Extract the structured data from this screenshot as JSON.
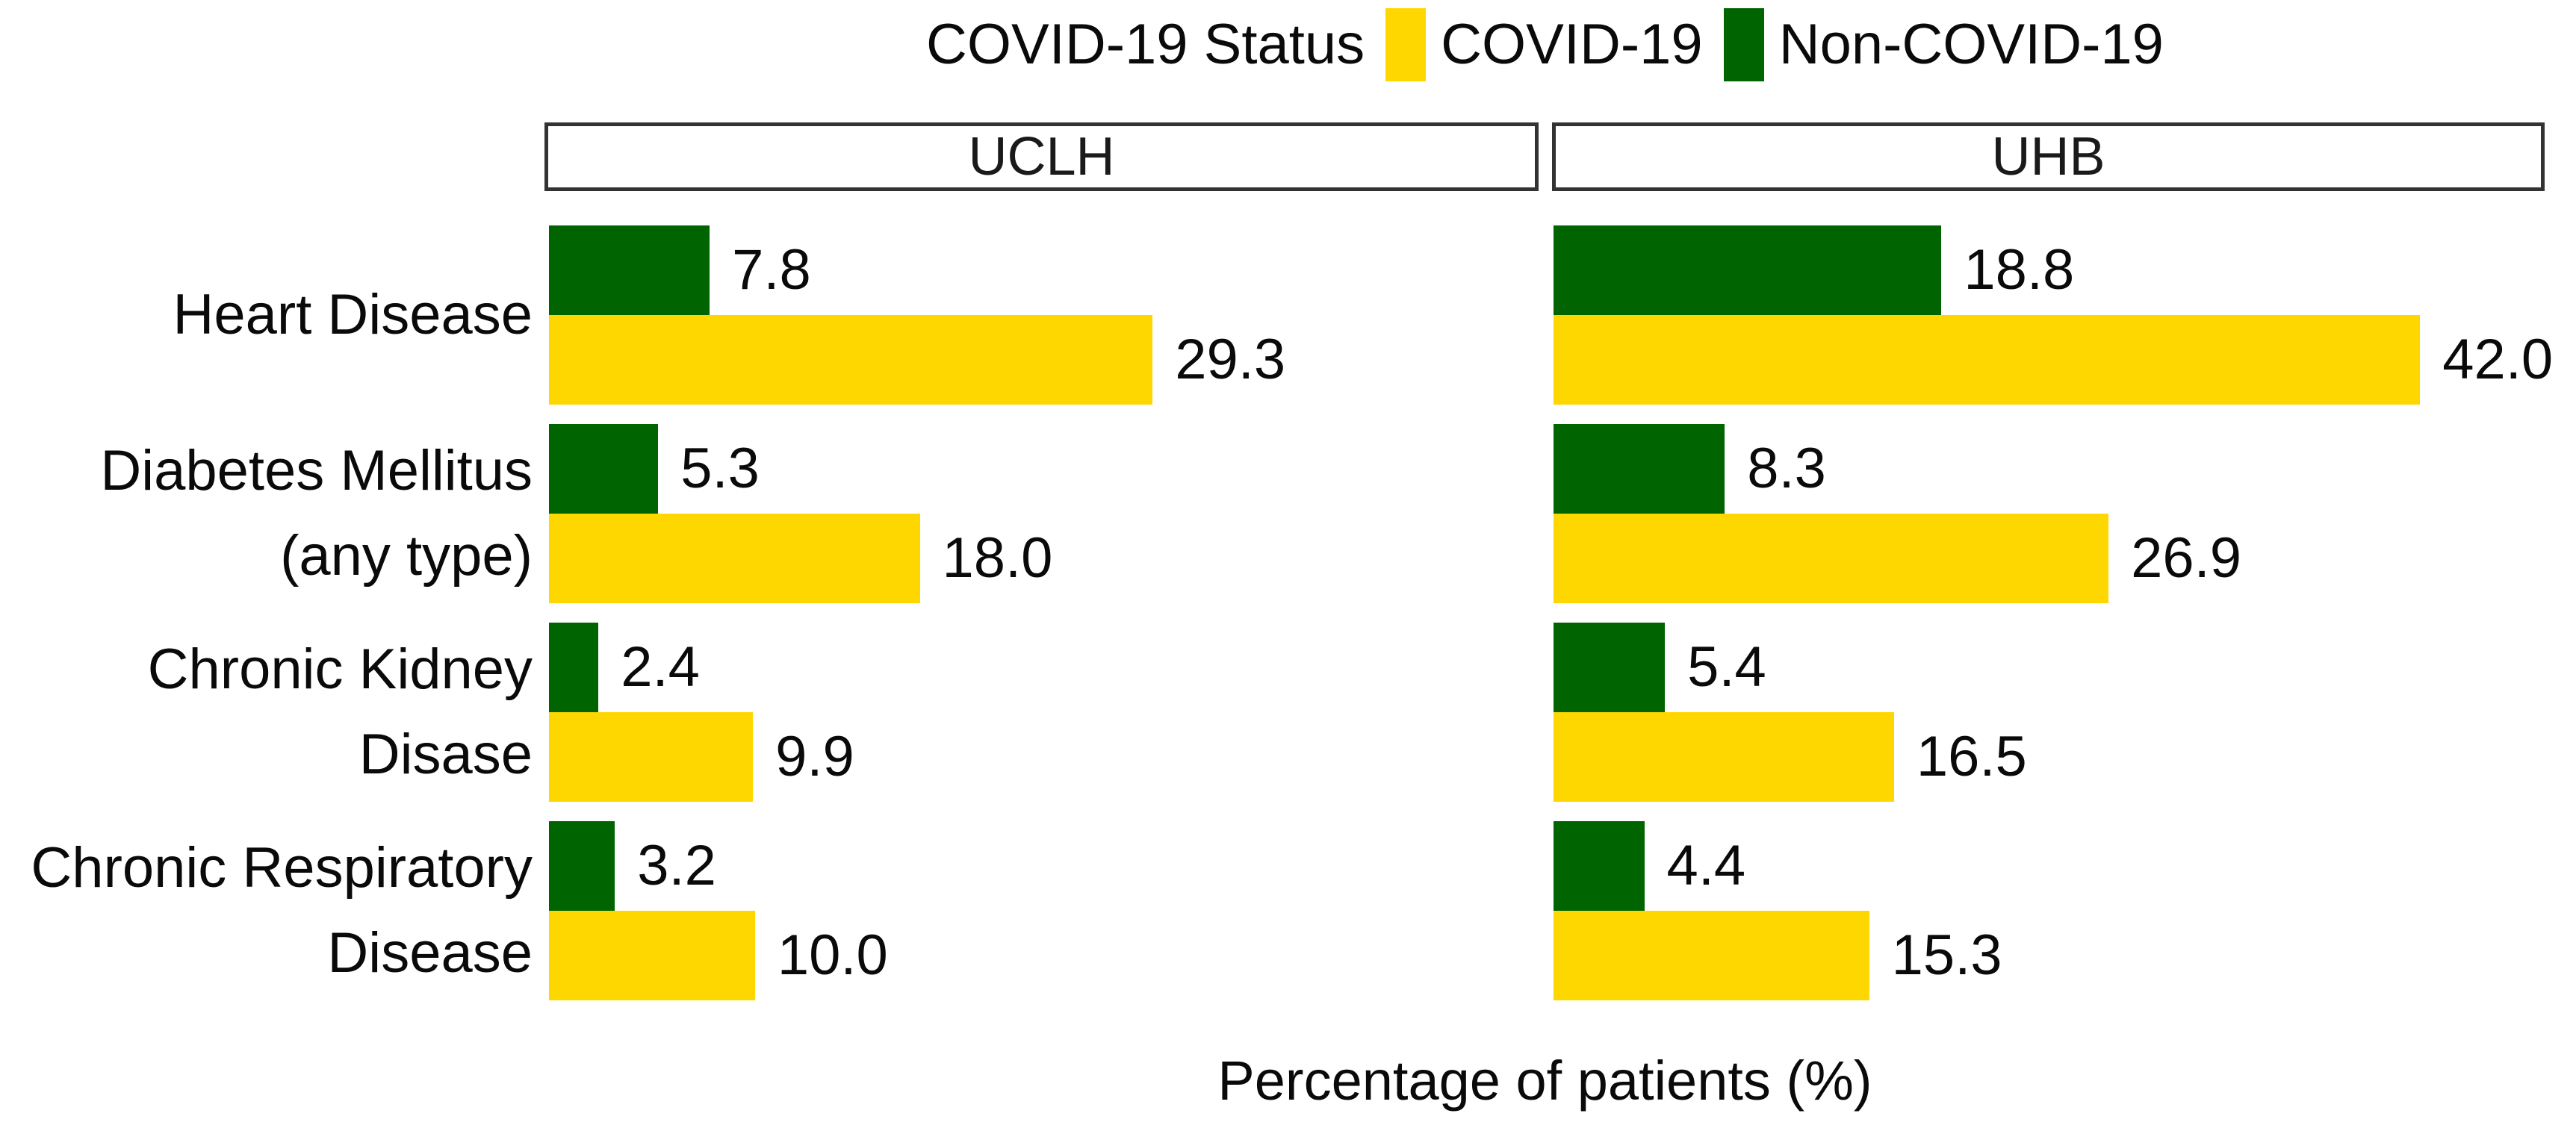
{
  "chart_data": {
    "type": "bar",
    "orientation": "horizontal",
    "grid": false,
    "value_labels": true,
    "legend_position": "top-center",
    "legend": {
      "title": "COVID-19 Status",
      "items": [
        {
          "label": "COVID-19",
          "color": "#FFD700"
        },
        {
          "label": "Non-COVID-19",
          "color": "#006400"
        }
      ]
    },
    "xlabel": "Percentage of patients (%)",
    "xlim": [
      0,
      48
    ],
    "categories": [
      "Heart Disease",
      "Diabetes Mellitus (any type)",
      "Chronic Kidney Disase",
      "Chronic Respiratory Disease"
    ],
    "category_label_lines": [
      [
        "Heart Disease"
      ],
      [
        "Diabetes Mellitus",
        "(any type)"
      ],
      [
        "Chronic Kidney",
        "Disase"
      ],
      [
        "Chronic Respiratory",
        "Disease"
      ]
    ],
    "facets": [
      {
        "name": "UCLH",
        "series": [
          {
            "name": "Non-COVID-19",
            "color": "#006400",
            "values": [
              7.8,
              5.3,
              2.4,
              3.2
            ],
            "labels": [
              "7.8",
              "5.3",
              "2.4",
              "3.2"
            ]
          },
          {
            "name": "COVID-19",
            "color": "#FFD700",
            "values": [
              29.3,
              18.0,
              9.9,
              10.0
            ],
            "labels": [
              "29.3",
              "18.0",
              "9.9",
              "10.0"
            ]
          }
        ]
      },
      {
        "name": "UHB",
        "series": [
          {
            "name": "Non-COVID-19",
            "color": "#006400",
            "values": [
              18.8,
              8.3,
              5.4,
              4.4
            ],
            "labels": [
              "18.8",
              "8.3",
              "5.4",
              "4.4"
            ]
          },
          {
            "name": "COVID-19",
            "color": "#FFD700",
            "values": [
              42.0,
              26.9,
              16.5,
              15.3
            ],
            "labels": [
              "42.0",
              "26.9",
              "16.5",
              "15.3"
            ]
          }
        ]
      }
    ]
  }
}
